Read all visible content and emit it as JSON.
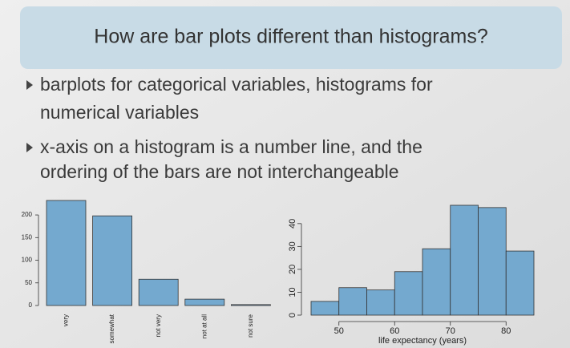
{
  "slide": {
    "title": "How are bar plots different than histograms?",
    "bullets": [
      [
        "barplots for categorical variables, histograms for",
        "numerical variables"
      ],
      [
        "x-axis on a histogram is a number line, and the",
        "ordering of the bars are not interchangeable"
      ]
    ]
  },
  "chart_data": [
    {
      "type": "bar",
      "categories": [
        "very",
        "somewhat",
        "not very",
        "not at all",
        "not sure"
      ],
      "values": [
        232,
        198,
        58,
        14,
        2
      ],
      "color": "#74a9cf",
      "ylim": [
        0,
        232
      ],
      "yticks": [
        0,
        50,
        100,
        150,
        200
      ]
    },
    {
      "type": "histogram",
      "bins": [
        45,
        50,
        55,
        60,
        65,
        70,
        75,
        80,
        85
      ],
      "values": [
        6,
        12,
        11,
        19,
        29,
        48,
        47,
        28
      ],
      "color": "#74a9cf",
      "xlim": [
        45,
        85
      ],
      "xticks": [
        50,
        60,
        70,
        80
      ],
      "ylim": [
        0,
        48
      ],
      "yticks": [
        0,
        10,
        20,
        30,
        40
      ],
      "xlabel": "life expectancy (years)"
    }
  ]
}
